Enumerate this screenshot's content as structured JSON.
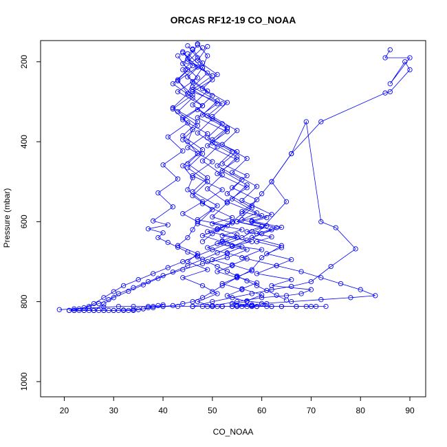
{
  "chart_data": {
    "type": "line",
    "title": "ORCAS RF12-19 CO_NOAA",
    "xlabel": "CO_NOAA",
    "ylabel": "Pressure (mbar)",
    "xlim": [
      15.2,
      93.2
    ],
    "ylim": [
      1038,
      147
    ],
    "y_reversed": true,
    "x_ticks": [
      20,
      30,
      40,
      50,
      60,
      70,
      80,
      90
    ],
    "y_ticks": [
      200,
      400,
      600,
      800,
      1000
    ],
    "grid": false,
    "legend": "none",
    "marker": "open-circle",
    "color": "#0000ff",
    "series": [
      {
        "x": [
          45,
          47,
          44,
          46,
          45,
          48,
          44,
          46,
          45,
          47,
          44,
          46,
          45,
          48,
          44,
          47,
          46,
          45,
          43,
          47,
          45,
          49,
          44,
          48,
          51,
          47,
          50,
          46,
          52,
          48,
          51,
          55,
          50,
          57,
          54,
          52,
          56,
          54,
          58,
          62,
          59,
          64,
          67,
          69,
          71
        ],
        "y": [
          160,
          190,
          220,
          250,
          280,
          310,
          340,
          370,
          400,
          430,
          460,
          490,
          520,
          550,
          580,
          600,
          620,
          640,
          660,
          680,
          700,
          720,
          740,
          760,
          780,
          800,
          812,
          812,
          812,
          812,
          812,
          812,
          812,
          812,
          812,
          812,
          812,
          812,
          812,
          812,
          812,
          812,
          812,
          812,
          812
        ]
      },
      {
        "x": [
          47,
          49,
          48,
          50,
          46,
          52,
          49,
          53,
          50,
          55,
          52,
          57,
          54,
          59,
          56,
          61,
          58,
          63,
          59,
          65,
          62,
          66,
          69,
          72,
          75,
          79,
          74,
          70,
          66,
          62,
          58,
          54,
          50,
          46
        ],
        "y": [
          155,
          185,
          215,
          245,
          275,
          305,
          335,
          365,
          395,
          425,
          455,
          485,
          515,
          545,
          575,
          590,
          600,
          615,
          630,
          550,
          500,
          430,
          350,
          600,
          615,
          668,
          712,
          750,
          762,
          770,
          780,
          790,
          800,
          812
        ]
      },
      {
        "x": [
          48,
          45,
          50,
          46,
          51,
          47,
          53,
          49,
          55,
          51,
          57,
          53,
          60,
          55,
          62,
          58,
          64,
          60,
          58,
          55,
          52,
          50,
          48,
          46,
          44,
          42,
          40,
          38,
          36,
          34,
          32,
          30,
          28,
          26,
          24,
          22
        ],
        "y": [
          165,
          200,
          235,
          270,
          305,
          340,
          375,
          410,
          445,
          480,
          515,
          550,
          585,
          600,
          620,
          640,
          660,
          690,
          720,
          740,
          760,
          775,
          790,
          800,
          805,
          810,
          812,
          815,
          818,
          820,
          821,
          822,
          822,
          822,
          822,
          822
        ]
      },
      {
        "x": [
          46,
          44,
          47,
          43,
          48,
          44,
          49,
          45,
          50,
          46,
          52,
          48,
          54,
          50,
          56,
          52,
          58,
          54,
          60,
          56,
          63,
          59,
          66,
          62,
          70,
          68,
          65,
          60,
          55,
          50
        ],
        "y": [
          170,
          205,
          240,
          275,
          310,
          345,
          380,
          415,
          450,
          485,
          520,
          555,
          590,
          605,
          620,
          635,
          650,
          660,
          670,
          690,
          710,
          730,
          745,
          760,
          770,
          780,
          785,
          790,
          800,
          810
        ]
      },
      {
        "x": [
          44,
          46,
          43,
          45,
          42,
          47,
          44,
          48,
          45,
          49,
          46,
          51,
          47,
          53,
          49,
          55,
          51,
          57,
          53,
          48,
          44,
          40,
          37,
          34,
          31,
          29,
          27,
          25,
          23,
          21
        ],
        "y": [
          175,
          210,
          245,
          280,
          315,
          350,
          385,
          420,
          455,
          490,
          525,
          560,
          595,
          610,
          625,
          640,
          655,
          670,
          690,
          705,
          720,
          735,
          750,
          765,
          780,
          795,
          805,
          812,
          818,
          822
        ]
      },
      {
        "x": [
          45,
          48,
          46,
          50,
          47,
          52,
          49,
          54,
          51,
          56,
          53,
          58,
          55,
          60,
          57,
          62,
          59,
          64,
          61,
          66,
          63,
          68,
          72,
          76,
          80,
          83,
          78,
          72,
          66,
          60
        ],
        "y": [
          180,
          215,
          250,
          285,
          320,
          355,
          390,
          425,
          460,
          495,
          530,
          565,
          600,
          612,
          625,
          638,
          650,
          665,
          680,
          695,
          710,
          725,
          740,
          755,
          770,
          785,
          790,
          795,
          800,
          805
        ]
      },
      {
        "x": [
          47,
          45,
          49,
          46,
          51,
          48,
          53,
          50,
          55,
          52,
          57,
          54,
          59,
          56,
          61,
          58,
          56,
          53,
          50,
          47,
          44,
          41,
          38,
          35,
          32,
          30,
          28,
          26,
          24,
          22
        ],
        "y": [
          158,
          193,
          228,
          263,
          298,
          333,
          368,
          403,
          438,
          473,
          508,
          543,
          578,
          595,
          610,
          625,
          640,
          655,
          670,
          685,
          700,
          715,
          730,
          745,
          760,
          775,
          790,
          805,
          815,
          822
        ]
      },
      {
        "x": [
          86,
          85,
          90,
          86,
          89,
          90,
          86,
          85,
          72,
          66,
          62,
          60,
          58,
          56,
          54,
          52,
          50,
          48
        ],
        "y": [
          170,
          190,
          190,
          255,
          200,
          220,
          275,
          278,
          350,
          430,
          500,
          530,
          560,
          580,
          600,
          615,
          630,
          650
        ]
      },
      {
        "x": [
          49,
          47,
          51,
          48,
          53,
          50,
          55,
          52,
          57,
          54,
          59,
          56,
          62,
          58,
          64,
          60,
          57,
          54,
          51,
          48,
          45,
          42,
          39,
          36,
          33,
          30,
          28,
          26
        ],
        "y": [
          162,
          197,
          232,
          267,
          302,
          337,
          372,
          407,
          442,
          477,
          512,
          547,
          582,
          598,
          614,
          630,
          646,
          662,
          678,
          694,
          710,
          726,
          742,
          758,
          774,
          790,
          806,
          822
        ]
      },
      {
        "x": [
          43,
          45,
          42,
          46,
          43,
          47,
          44,
          48,
          45,
          49,
          46,
          50,
          47,
          51,
          48,
          52,
          49,
          53,
          50,
          54,
          51,
          55,
          52,
          56,
          53,
          57,
          54,
          58,
          55,
          59
        ],
        "y": [
          185,
          220,
          255,
          290,
          325,
          360,
          395,
          430,
          465,
          500,
          535,
          570,
          605,
          620,
          635,
          650,
          665,
          680,
          695,
          710,
          725,
          740,
          755,
          770,
          785,
          800,
          805,
          808,
          810,
          812
        ]
      },
      {
        "x": [
          46,
          48,
          45,
          49,
          46,
          50,
          47,
          51,
          48,
          52,
          49,
          53,
          50,
          54,
          51,
          55,
          52,
          56,
          53,
          57,
          54,
          58,
          55,
          59,
          56,
          60,
          57,
          61,
          58,
          62
        ],
        "y": [
          168,
          203,
          238,
          273,
          308,
          343,
          378,
          413,
          448,
          483,
          518,
          553,
          588,
          603,
          618,
          633,
          648,
          663,
          678,
          693,
          708,
          723,
          738,
          753,
          768,
          783,
          798,
          805,
          810,
          812
        ]
      },
      {
        "x": [
          44,
          47,
          43,
          46,
          42,
          45,
          41,
          44,
          40,
          43,
          39,
          42,
          38,
          41,
          37,
          40,
          39,
          41,
          43,
          45,
          47,
          49,
          51,
          53,
          55,
          57,
          59,
          61,
          63,
          65
        ],
        "y": [
          178,
          213,
          248,
          283,
          318,
          353,
          388,
          423,
          458,
          493,
          528,
          563,
          598,
          608,
          618,
          628,
          640,
          652,
          664,
          676,
          688,
          700,
          712,
          724,
          736,
          748,
          760,
          772,
          784,
          796
        ]
      },
      {
        "x": [
          21,
          22,
          23,
          24,
          25,
          26,
          27,
          28,
          29,
          30,
          31,
          32,
          33,
          34,
          35,
          36,
          37,
          38,
          39,
          40
        ],
        "y": [
          822,
          822,
          822,
          822,
          822,
          822,
          822,
          822,
          822,
          822,
          822,
          822,
          822,
          822,
          820,
          818,
          815,
          812,
          810,
          808
        ]
      },
      {
        "x": [
          19,
          22,
          25,
          28,
          31,
          34,
          37,
          40,
          43,
          46,
          49,
          52,
          55,
          58,
          61,
          64,
          67,
          70,
          73
        ],
        "y": [
          820,
          818,
          816,
          814,
          812,
          812,
          812,
          812,
          812,
          812,
          812,
          812,
          812,
          812,
          812,
          812,
          812,
          812,
          812
        ]
      }
    ]
  }
}
